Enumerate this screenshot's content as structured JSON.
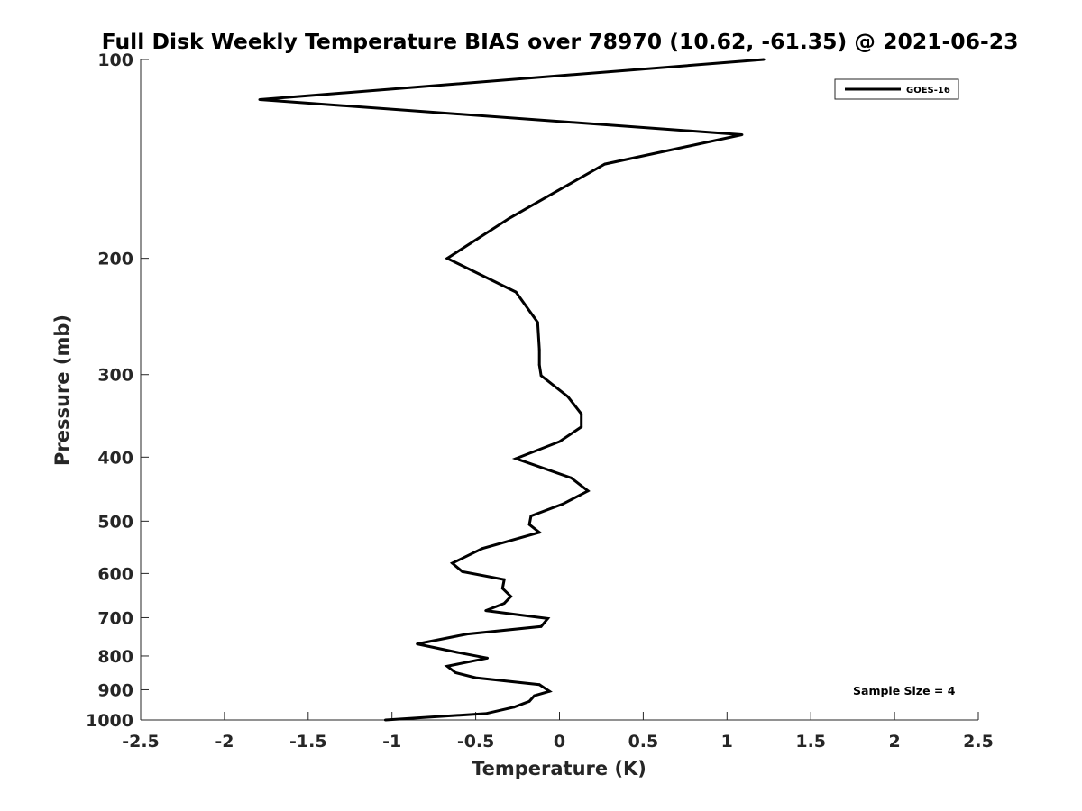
{
  "chart_data": {
    "type": "line",
    "title": "Full Disk Weekly Temperature BIAS over 78970 (10.62, -61.35) @ 2021-06-23",
    "xlabel": "Temperature (K)",
    "ylabel": "Pressure (mb)",
    "xlim": [
      -2.5,
      2.5
    ],
    "ylim": [
      100,
      1000
    ],
    "y_scale": "log",
    "y_reversed": true,
    "x_ticks": [
      -2.5,
      -2,
      -1.5,
      -1,
      -0.5,
      0,
      0.5,
      1,
      1.5,
      2,
      2.5
    ],
    "x_tick_labels": [
      "-2.5",
      "-2",
      "-1.5",
      "-1",
      "-0.5",
      "0",
      "0.5",
      "1",
      "1.5",
      "2",
      "2.5"
    ],
    "y_ticks": [
      100,
      200,
      300,
      400,
      500,
      600,
      700,
      800,
      900,
      1000
    ],
    "y_tick_labels": [
      "100",
      "200",
      "300",
      "400",
      "500",
      "600",
      "700",
      "800",
      "900",
      "1000"
    ],
    "grid": false,
    "legend_position": "top-right",
    "annotation": "Sample Size = 4",
    "series": [
      {
        "name": "GOES-16",
        "color": "#000000",
        "points": [
          {
            "x": 1.22,
            "y": 100
          },
          {
            "x": -1.79,
            "y": 115
          },
          {
            "x": 1.09,
            "y": 130
          },
          {
            "x": 0.27,
            "y": 144
          },
          {
            "x": -0.01,
            "y": 158
          },
          {
            "x": -0.3,
            "y": 174
          },
          {
            "x": -0.67,
            "y": 200
          },
          {
            "x": -0.26,
            "y": 225
          },
          {
            "x": -0.13,
            "y": 250
          },
          {
            "x": -0.12,
            "y": 275
          },
          {
            "x": -0.12,
            "y": 290
          },
          {
            "x": -0.11,
            "y": 301
          },
          {
            "x": 0.05,
            "y": 324
          },
          {
            "x": 0.13,
            "y": 344
          },
          {
            "x": 0.13,
            "y": 360
          },
          {
            "x": 0.0,
            "y": 379
          },
          {
            "x": -0.26,
            "y": 402
          },
          {
            "x": 0.07,
            "y": 430
          },
          {
            "x": 0.17,
            "y": 450
          },
          {
            "x": 0.02,
            "y": 471
          },
          {
            "x": -0.17,
            "y": 491
          },
          {
            "x": -0.18,
            "y": 506
          },
          {
            "x": -0.12,
            "y": 520
          },
          {
            "x": -0.46,
            "y": 550
          },
          {
            "x": -0.64,
            "y": 579
          },
          {
            "x": -0.58,
            "y": 596
          },
          {
            "x": -0.33,
            "y": 613
          },
          {
            "x": -0.34,
            "y": 632
          },
          {
            "x": -0.29,
            "y": 650
          },
          {
            "x": -0.33,
            "y": 666
          },
          {
            "x": -0.44,
            "y": 683
          },
          {
            "x": -0.07,
            "y": 702
          },
          {
            "x": -0.11,
            "y": 722
          },
          {
            "x": -0.55,
            "y": 741
          },
          {
            "x": -0.85,
            "y": 767
          },
          {
            "x": -0.61,
            "y": 790
          },
          {
            "x": -0.43,
            "y": 806
          },
          {
            "x": -0.67,
            "y": 829
          },
          {
            "x": -0.62,
            "y": 848
          },
          {
            "x": -0.5,
            "y": 863
          },
          {
            "x": -0.12,
            "y": 884
          },
          {
            "x": -0.06,
            "y": 905
          },
          {
            "x": -0.15,
            "y": 919
          },
          {
            "x": -0.18,
            "y": 937
          },
          {
            "x": -0.27,
            "y": 956
          },
          {
            "x": -0.44,
            "y": 978
          },
          {
            "x": -1.04,
            "y": 1000
          }
        ]
      }
    ]
  }
}
